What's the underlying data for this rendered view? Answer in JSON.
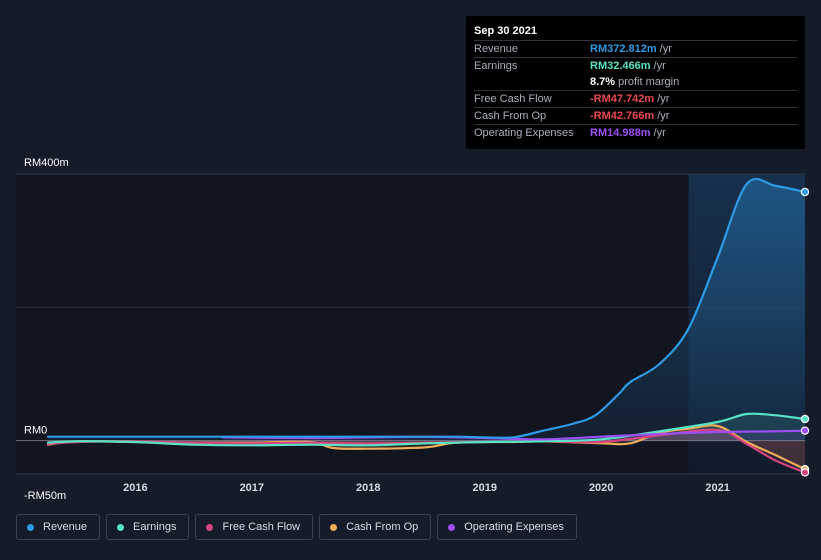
{
  "chart_data": {
    "type": "area",
    "ylabels": [
      {
        "value": 400,
        "label": "RM400m"
      },
      {
        "value": 0,
        "label": "RM0"
      },
      {
        "value": -50,
        "label": "-RM50m"
      }
    ],
    "ylim": [
      -50,
      400
    ],
    "xlim": [
      2015.25,
      2021.75
    ],
    "xticks": [
      {
        "value": 2016,
        "label": "2016"
      },
      {
        "value": 2017,
        "label": "2017"
      },
      {
        "value": 2018,
        "label": "2018"
      },
      {
        "value": 2019,
        "label": "2019"
      },
      {
        "value": 2020,
        "label": "2020"
      },
      {
        "value": 2021,
        "label": "2021"
      }
    ],
    "highlight_start": 2020.75,
    "series": [
      {
        "name": "Revenue",
        "color": "#2d9be6",
        "points": [
          [
            2015.25,
            6
          ],
          [
            2015.75,
            6
          ],
          [
            2016.25,
            6
          ],
          [
            2016.75,
            6
          ],
          [
            2017.25,
            6
          ],
          [
            2017.75,
            6
          ],
          [
            2018.25,
            6
          ],
          [
            2018.75,
            6
          ],
          [
            2019.0,
            5
          ],
          [
            2019.25,
            5
          ],
          [
            2019.5,
            15
          ],
          [
            2019.75,
            25
          ],
          [
            2019.95,
            38
          ],
          [
            2020.15,
            70
          ],
          [
            2020.25,
            88
          ],
          [
            2020.5,
            115
          ],
          [
            2020.75,
            168
          ],
          [
            2021.0,
            275
          ],
          [
            2021.25,
            385
          ],
          [
            2021.5,
            382
          ],
          [
            2021.75,
            373
          ]
        ]
      },
      {
        "name": "Earnings",
        "color": "#58e3c4",
        "points": [
          [
            2015.25,
            -3
          ],
          [
            2015.5,
            -1
          ],
          [
            2016.0,
            -2
          ],
          [
            2016.5,
            -6
          ],
          [
            2017.0,
            -7
          ],
          [
            2017.5,
            -6
          ],
          [
            2018.0,
            -7
          ],
          [
            2018.5,
            -4
          ],
          [
            2019.0,
            -2
          ],
          [
            2019.5,
            -1
          ],
          [
            2020.0,
            2
          ],
          [
            2020.5,
            14
          ],
          [
            2021.0,
            28
          ],
          [
            2021.25,
            40
          ],
          [
            2021.5,
            38
          ],
          [
            2021.75,
            32.5
          ]
        ]
      },
      {
        "name": "Free Cash Flow",
        "color": "#d6457f",
        "points": [
          [
            2015.25,
            -5
          ],
          [
            2015.5,
            -2
          ],
          [
            2016.0,
            -1
          ],
          [
            2016.5,
            -3
          ],
          [
            2017.0,
            -4
          ],
          [
            2017.5,
            -3
          ],
          [
            2018.0,
            -4
          ],
          [
            2018.5,
            -3
          ],
          [
            2019.0,
            -2
          ],
          [
            2019.5,
            -1
          ],
          [
            2020.0,
            -2
          ],
          [
            2020.5,
            8
          ],
          [
            2021.0,
            16
          ],
          [
            2021.25,
            -5
          ],
          [
            2021.5,
            -30
          ],
          [
            2021.75,
            -47.7
          ]
        ]
      },
      {
        "name": "Cash From Op",
        "color": "#f0ad5a",
        "points": [
          [
            2015.25,
            -6
          ],
          [
            2015.5,
            -1
          ],
          [
            2016.0,
            -2
          ],
          [
            2016.5,
            -3
          ],
          [
            2017.0,
            -3
          ],
          [
            2017.5,
            -2
          ],
          [
            2017.7,
            -11
          ],
          [
            2018.0,
            -12
          ],
          [
            2018.5,
            -10
          ],
          [
            2018.75,
            -3
          ],
          [
            2019.25,
            -2
          ],
          [
            2019.5,
            -1
          ],
          [
            2020.0,
            -4
          ],
          [
            2020.25,
            -4
          ],
          [
            2020.5,
            12
          ],
          [
            2020.75,
            18
          ],
          [
            2021.0,
            22
          ],
          [
            2021.25,
            -2
          ],
          [
            2021.5,
            -22
          ],
          [
            2021.75,
            -42.8
          ]
        ]
      },
      {
        "name": "Operating Expenses",
        "color": "#9d4ff5",
        "points": [
          [
            2016.75,
            5
          ],
          [
            2017.5,
            4
          ],
          [
            2018.0,
            5
          ],
          [
            2018.5,
            6
          ],
          [
            2019.0,
            4
          ],
          [
            2019.5,
            2
          ],
          [
            2020.0,
            6
          ],
          [
            2020.5,
            10
          ],
          [
            2021.0,
            13
          ],
          [
            2021.5,
            14
          ],
          [
            2021.75,
            15
          ]
        ]
      }
    ]
  },
  "tooltip": {
    "date": "Sep 30 2021",
    "rows": [
      {
        "label": "Revenue",
        "value": "RM372.812m",
        "unit": "/yr",
        "color": "#2d9be6"
      },
      {
        "label": "Earnings",
        "value": "RM32.466m",
        "unit": "/yr",
        "color": "#58e3c4"
      },
      {
        "label": "",
        "value": "8.7%",
        "unit": "profit margin",
        "color": "#ffffff"
      },
      {
        "label": "Free Cash Flow",
        "value": "-RM47.742m",
        "unit": "/yr",
        "color": "#e8494f"
      },
      {
        "label": "Cash From Op",
        "value": "-RM42.766m",
        "unit": "/yr",
        "color": "#e8494f"
      },
      {
        "label": "Operating Expenses",
        "value": "RM14.988m",
        "unit": "/yr",
        "color": "#9d4ff5"
      }
    ]
  },
  "legend": [
    {
      "label": "Revenue",
      "color": "#2d9be6"
    },
    {
      "label": "Earnings",
      "color": "#58e3c4"
    },
    {
      "label": "Free Cash Flow",
      "color": "#d6457f"
    },
    {
      "label": "Cash From Op",
      "color": "#f0ad5a"
    },
    {
      "label": "Operating Expenses",
      "color": "#9d4ff5"
    }
  ]
}
